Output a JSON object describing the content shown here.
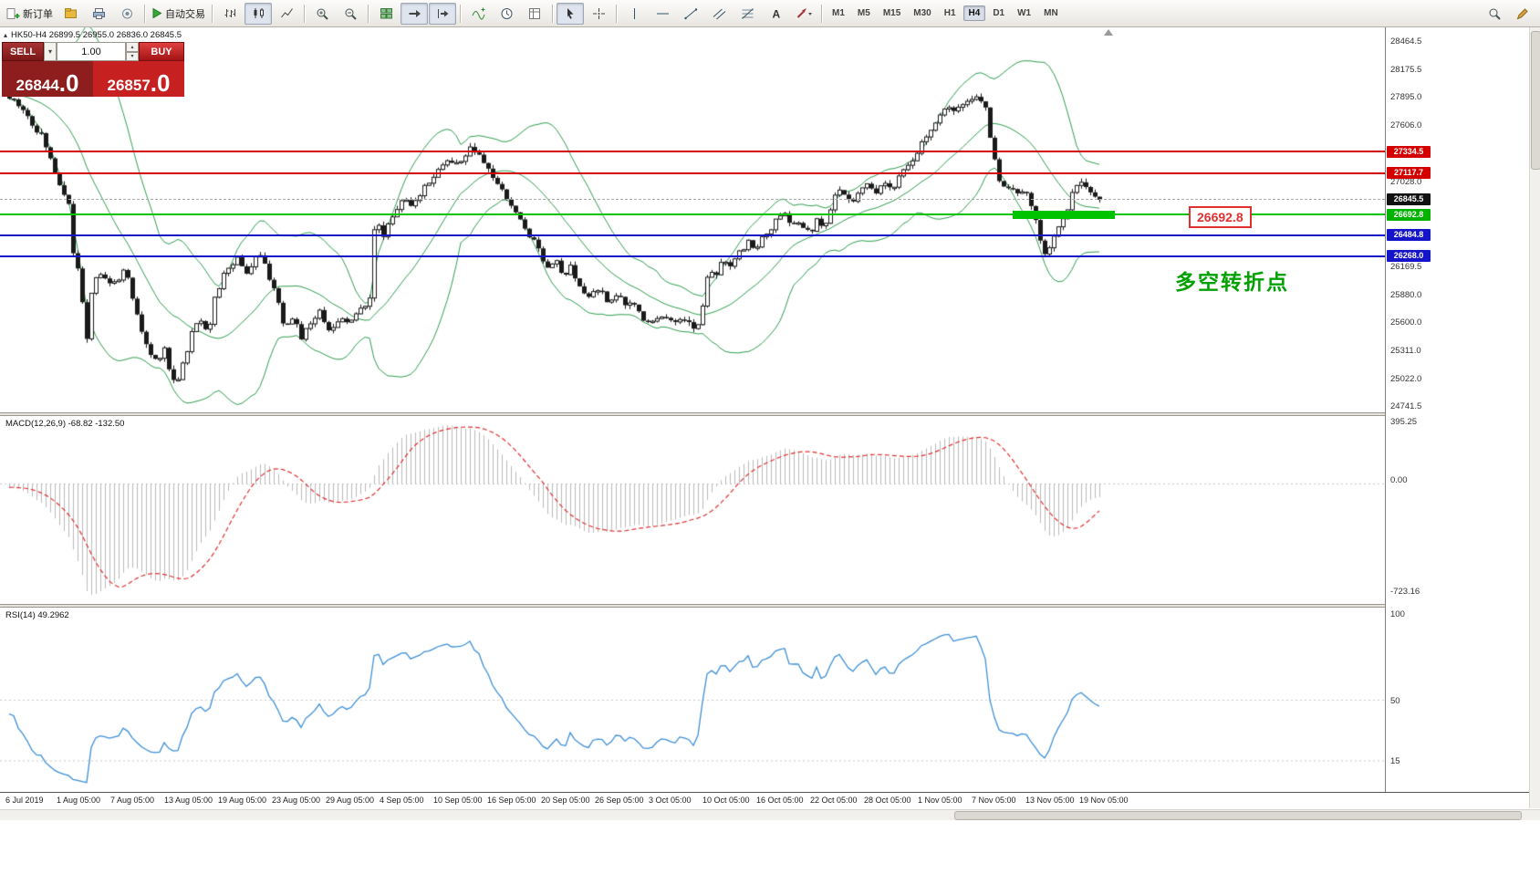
{
  "toolbar": {
    "new_order_label": "新订单",
    "autotrade_label": "自动交易",
    "timeframes": [
      "M1",
      "M5",
      "M15",
      "M30",
      "H1",
      "H4",
      "D1",
      "W1",
      "MN"
    ],
    "active_timeframe": "H4"
  },
  "chart": {
    "ohlc_info": "HK50-H4 26899.5 26955.0 26836.0 26845.5",
    "one_click_toggle": "▴",
    "trade_panel": {
      "sell_label": "SELL",
      "buy_label": "BUY",
      "volume": "1.00",
      "sell_price_int": "26844",
      "sell_price_frac": ".0",
      "buy_price_int": "26857",
      "buy_price_frac": ".0"
    },
    "annotation": "多空转折点",
    "level_label": "26692.8",
    "price_ticks": [
      {
        "text": "28464.5",
        "price": 28464.5
      },
      {
        "text": "28175.5",
        "price": 28175.5
      },
      {
        "text": "27895.0",
        "price": 27895.0
      },
      {
        "text": "27606.0",
        "price": 27606.0
      },
      {
        "text": "27028.0",
        "price": 27028.0
      },
      {
        "text": "26169.5",
        "price": 26169.5
      },
      {
        "text": "25880.0",
        "price": 25880.0
      },
      {
        "text": "25600.0",
        "price": 25600.0
      },
      {
        "text": "25311.0",
        "price": 25311.0
      },
      {
        "text": "25022.0",
        "price": 25022.0
      },
      {
        "text": "24741.5",
        "price": 24741.5
      }
    ],
    "price_tags": [
      {
        "text": "27334.5",
        "price": 27334.5,
        "bg": "#d40000"
      },
      {
        "text": "27117.7",
        "price": 27117.7,
        "bg": "#d40000"
      },
      {
        "text": "26845.5",
        "price": 26845.5,
        "bg": "#111111"
      },
      {
        "text": "26692.8",
        "price": 26692.8,
        "bg": "#00b300"
      },
      {
        "text": "26484.8",
        "price": 26484.8,
        "bg": "#1414c8"
      },
      {
        "text": "26268.0",
        "price": 26268.0,
        "bg": "#1414c8"
      }
    ],
    "hlines": [
      {
        "price": 27334.5,
        "color": "#d40000",
        "width": 2
      },
      {
        "price": 27117.7,
        "color": "#d40000",
        "width": 2
      },
      {
        "price": 26692.8,
        "color": "#00c300",
        "width": 2
      },
      {
        "price": 26484.8,
        "color": "#1414c8",
        "width": 2
      },
      {
        "price": 26268.0,
        "color": "#1414c8",
        "width": 2
      }
    ]
  },
  "macd": {
    "label": "MACD(12,26,9) -68.82 -132.50",
    "scale": [
      "395.25",
      "0.00",
      "-723.16"
    ]
  },
  "rsi": {
    "label": "RSI(14) 49.2962",
    "scale": [
      "100",
      "50",
      "15"
    ]
  },
  "time_axis": [
    "6 Jul 2019",
    "1 Aug 05:00",
    "7 Aug 05:00",
    "13 Aug 05:00",
    "19 Aug 05:00",
    "23 Aug 05:00",
    "29 Aug 05:00",
    "4 Sep 05:00",
    "10 Sep 05:00",
    "16 Sep 05:00",
    "20 Sep 05:00",
    "26 Sep 05:00",
    "3 Oct 05:00",
    "10 Oct 05:00",
    "16 Oct 05:00",
    "22 Oct 05:00",
    "28 Oct 05:00",
    "1 Nov 05:00",
    "7 Nov 05:00",
    "13 Nov 05:00",
    "19 Nov 05:00"
  ],
  "chart_data": {
    "type": "candlestick",
    "symbol": "HK50",
    "timeframe": "H4",
    "ohlc_current": {
      "open": 26899.5,
      "high": 26955.0,
      "low": 26836.0,
      "close": 26845.5
    },
    "candle_count": 240,
    "y_axis_range": [
      24741.5,
      28464.5
    ],
    "price_path": [
      [
        0.0,
        27880
      ],
      [
        0.01,
        27820
      ],
      [
        0.02,
        27650
      ],
      [
        0.03,
        27480
      ],
      [
        0.04,
        27200
      ],
      [
        0.048,
        26950
      ],
      [
        0.054,
        26880
      ],
      [
        0.058,
        26350
      ],
      [
        0.064,
        26050
      ],
      [
        0.071,
        25420
      ],
      [
        0.076,
        25980
      ],
      [
        0.085,
        26100
      ],
      [
        0.095,
        25950
      ],
      [
        0.105,
        26150
      ],
      [
        0.112,
        25900
      ],
      [
        0.12,
        25550
      ],
      [
        0.127,
        25300
      ],
      [
        0.135,
        25200
      ],
      [
        0.142,
        25350
      ],
      [
        0.148,
        25050
      ],
      [
        0.153,
        24980
      ],
      [
        0.16,
        25200
      ],
      [
        0.168,
        25500
      ],
      [
        0.175,
        25650
      ],
      [
        0.182,
        25500
      ],
      [
        0.19,
        25900
      ],
      [
        0.2,
        26150
      ],
      [
        0.21,
        26250
      ],
      [
        0.218,
        26100
      ],
      [
        0.228,
        26300
      ],
      [
        0.235,
        26150
      ],
      [
        0.243,
        25950
      ],
      [
        0.252,
        25500
      ],
      [
        0.26,
        25650
      ],
      [
        0.268,
        25450
      ],
      [
        0.276,
        25600
      ],
      [
        0.285,
        25700
      ],
      [
        0.295,
        25500
      ],
      [
        0.305,
        25650
      ],
      [
        0.315,
        25600
      ],
      [
        0.325,
        25800
      ],
      [
        0.33,
        25780
      ],
      [
        0.335,
        26600
      ],
      [
        0.343,
        26500
      ],
      [
        0.352,
        26700
      ],
      [
        0.36,
        26850
      ],
      [
        0.37,
        26750
      ],
      [
        0.378,
        26950
      ],
      [
        0.385,
        27050
      ],
      [
        0.393,
        27150
      ],
      [
        0.4,
        27250
      ],
      [
        0.41,
        27200
      ],
      [
        0.418,
        27300
      ],
      [
        0.424,
        27380
      ],
      [
        0.43,
        27280
      ],
      [
        0.44,
        27150
      ],
      [
        0.45,
        26950
      ],
      [
        0.46,
        26800
      ],
      [
        0.47,
        26600
      ],
      [
        0.48,
        26450
      ],
      [
        0.488,
        26300
      ],
      [
        0.493,
        26150
      ],
      [
        0.5,
        26250
      ],
      [
        0.508,
        26050
      ],
      [
        0.515,
        26150
      ],
      [
        0.522,
        25950
      ],
      [
        0.531,
        25850
      ],
      [
        0.54,
        25950
      ],
      [
        0.548,
        25800
      ],
      [
        0.556,
        25900
      ],
      [
        0.565,
        25750
      ],
      [
        0.572,
        25800
      ],
      [
        0.58,
        25650
      ],
      [
        0.59,
        25600
      ],
      [
        0.6,
        25700
      ],
      [
        0.61,
        25580
      ],
      [
        0.62,
        25650
      ],
      [
        0.627,
        25520
      ],
      [
        0.634,
        25600
      ],
      [
        0.641,
        26150
      ],
      [
        0.648,
        26100
      ],
      [
        0.655,
        26250
      ],
      [
        0.662,
        26150
      ],
      [
        0.67,
        26300
      ],
      [
        0.678,
        26420
      ],
      [
        0.686,
        26350
      ],
      [
        0.693,
        26500
      ],
      [
        0.702,
        26600
      ],
      [
        0.71,
        26700
      ],
      [
        0.718,
        26600
      ],
      [
        0.726,
        26600
      ],
      [
        0.734,
        26480
      ],
      [
        0.742,
        26650
      ],
      [
        0.748,
        26550
      ],
      [
        0.756,
        26850
      ],
      [
        0.764,
        26950
      ],
      [
        0.77,
        26820
      ],
      [
        0.778,
        26900
      ],
      [
        0.786,
        27000
      ],
      [
        0.794,
        26900
      ],
      [
        0.802,
        27050
      ],
      [
        0.81,
        26950
      ],
      [
        0.818,
        27100
      ],
      [
        0.827,
        27200
      ],
      [
        0.836,
        27400
      ],
      [
        0.845,
        27550
      ],
      [
        0.854,
        27700
      ],
      [
        0.864,
        27800
      ],
      [
        0.872,
        27750
      ],
      [
        0.88,
        27850
      ],
      [
        0.889,
        27890
      ],
      [
        0.895,
        27800
      ],
      [
        0.902,
        27350
      ],
      [
        0.908,
        27050
      ],
      [
        0.915,
        26980
      ],
      [
        0.922,
        26900
      ],
      [
        0.929,
        26950
      ],
      [
        0.935,
        26850
      ],
      [
        0.942,
        26600
      ],
      [
        0.949,
        26300
      ],
      [
        0.955,
        26400
      ],
      [
        0.962,
        26550
      ],
      [
        0.97,
        26750
      ],
      [
        0.977,
        26950
      ],
      [
        0.984,
        27020
      ],
      [
        0.99,
        26900
      ],
      [
        1.0,
        26845.5
      ]
    ],
    "overlays": {
      "bollinger_bands": {
        "period": 20,
        "deviation": 2,
        "color": "#2f9e4f"
      },
      "horizontal_levels": [
        27334.5,
        27117.7,
        26692.8,
        26484.8,
        26268.0
      ],
      "thick_support_segment": {
        "price": 26692.8,
        "color": "#00c300"
      }
    },
    "macd": {
      "fast": 12,
      "slow": 26,
      "signal_period": 9,
      "current_values": [
        -68.82,
        -132.5
      ],
      "scale": [
        395.25,
        0.0,
        -723.16
      ]
    },
    "rsi": {
      "period": 14,
      "current_value": 49.2962,
      "scale": [
        100,
        50,
        15
      ]
    }
  }
}
